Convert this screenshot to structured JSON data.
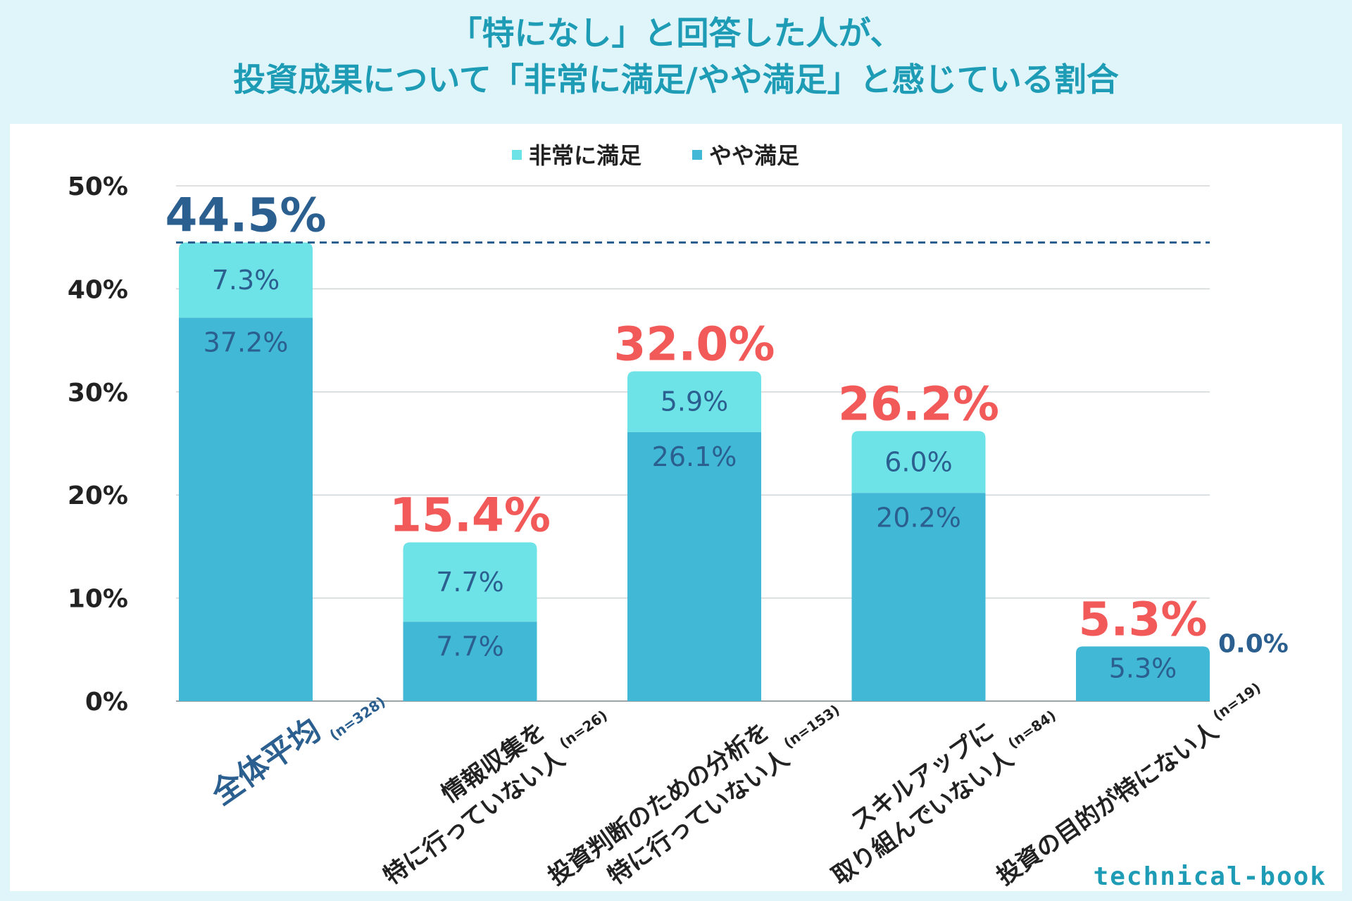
{
  "title_line1": "「特になし」と回答した人が、",
  "title_line2": "投資成果について「非常に満足/やや満足」と感じている割合",
  "legend": [
    {
      "label": "非常に満足",
      "color": "#6ee3e7"
    },
    {
      "label": "やや満足",
      "color": "#41b8d5"
    }
  ],
  "brand": "technical-book",
  "chart_data": {
    "type": "bar",
    "stacked": true,
    "yaxis_ticks": [
      "0%",
      "10%",
      "20%",
      "30%",
      "40%",
      "50%"
    ],
    "ylim": [
      0,
      50
    ],
    "grid": true,
    "legend_position": "top-center",
    "average_line_value": 44.5,
    "categories": [
      {
        "lines": [
          "全体平均"
        ],
        "n": "(n=328)",
        "highlight": true
      },
      {
        "lines": [
          "情報収集を",
          "特に行っていない人"
        ],
        "n": "(n=26)"
      },
      {
        "lines": [
          "投資判断のための分析を",
          "特に行っていない人"
        ],
        "n": "(n=153)"
      },
      {
        "lines": [
          "スキルアップに",
          "取り組んでいない人"
        ],
        "n": "(n=84)"
      },
      {
        "lines": [
          "投資の目的が特にない人"
        ],
        "n": "(n=19)"
      }
    ],
    "series": [
      {
        "name": "やや満足",
        "values": [
          37.2,
          7.7,
          26.1,
          20.2,
          5.3
        ],
        "labels": [
          "37.2%",
          "7.7%",
          "26.1%",
          "20.2%",
          "5.3%"
        ]
      },
      {
        "name": "非常に満足",
        "values": [
          7.3,
          7.7,
          5.9,
          6.0,
          0.0
        ],
        "labels": [
          "7.3%",
          "7.7%",
          "5.9%",
          "6.0%",
          "0.0%"
        ]
      }
    ],
    "totals": [
      "44.5%",
      "15.4%",
      "32.0%",
      "26.2%",
      "5.3%"
    ],
    "colors": {
      "top_segment": "#6ee3e7",
      "bottom_segment": "#41b8d5",
      "segment_label": "#2b5f8f",
      "average_total": "#2b5f8f",
      "group_total": "#f25a5a",
      "grid": "#d0d6d8",
      "average_line": "#2b5f8f"
    }
  }
}
